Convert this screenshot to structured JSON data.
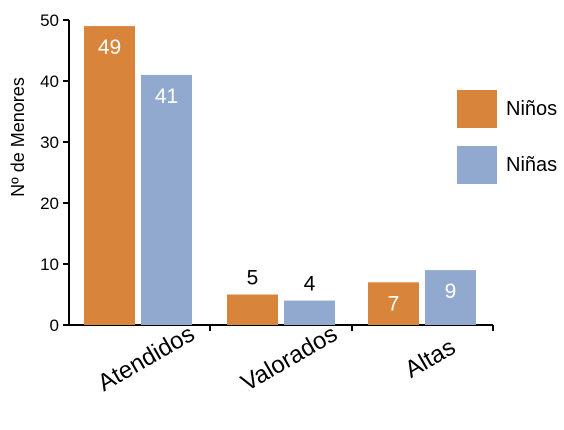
{
  "chart_data": {
    "type": "bar",
    "title": "",
    "xlabel": "",
    "ylabel": "Nº de Menores",
    "ylim": [
      0,
      50
    ],
    "yticks": [
      0,
      10,
      20,
      30,
      40,
      50
    ],
    "grid": false,
    "legend_position": "right",
    "categories": [
      "Atendidos",
      "Valorados",
      "Altas"
    ],
    "series": [
      {
        "name": "Niños",
        "color": "#D9843B",
        "values": [
          49,
          5,
          7
        ]
      },
      {
        "name": "Niñas",
        "color": "#92A9CF",
        "values": [
          41,
          4,
          9
        ]
      }
    ],
    "data_labels": [
      [
        "49",
        "5",
        "7"
      ],
      [
        "41",
        "4",
        "9"
      ]
    ]
  }
}
